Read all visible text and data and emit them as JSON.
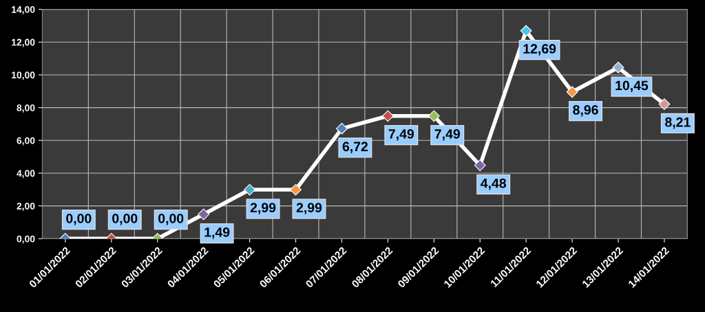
{
  "chart_data": {
    "type": "line",
    "categories": [
      "01/01/2022",
      "02/01/2022",
      "03/01/2022",
      "04/01/2022",
      "05/01/2022",
      "06/01/2022",
      "07/01/2022",
      "08/01/2022",
      "09/01/2022",
      "10/01/2022",
      "11/01/2022",
      "12/01/2022",
      "13/01/2022",
      "14/01/2022"
    ],
    "series": [
      {
        "color": "#ffffff",
        "values": [
          0,
          0,
          0,
          1.49,
          2.99,
          2.99,
          6.72,
          7.49,
          7.49,
          4.48,
          12.69,
          8.96,
          10.45,
          8.21
        ],
        "colors": [
          "#4f81bd",
          "#c0504d",
          "#9bbb59",
          "#8064a2",
          "#4bacc6",
          "#f79646",
          "#4f81bd",
          "#c0504d",
          "#9bbb59",
          "#8064a2",
          "#4bc8e8",
          "#f79646",
          "#95b3d7",
          "#d99694"
        ],
        "value_labels": [
          "0,00",
          "0,00",
          "0,00",
          "1,49",
          "2,99",
          "2,99",
          "6,72",
          "7,49",
          "7,49",
          "4,48",
          "12,69",
          "8,96",
          "10,45",
          "8,21"
        ]
      }
    ],
    "ylim": [
      0,
      14
    ],
    "yticks": [
      {
        "value": 0,
        "label": "0,00"
      },
      {
        "value": 2,
        "label": "2,00"
      },
      {
        "value": 4,
        "label": "4,00"
      },
      {
        "value": 6,
        "label": "6,00"
      },
      {
        "value": 8,
        "label": "8,00"
      },
      {
        "value": 10,
        "label": "10,00"
      },
      {
        "value": 12,
        "label": "12,00"
      },
      {
        "value": 14,
        "label": "14,00"
      }
    ],
    "grid": true,
    "marker": "diamond",
    "line_style": "solid",
    "legend": false
  }
}
